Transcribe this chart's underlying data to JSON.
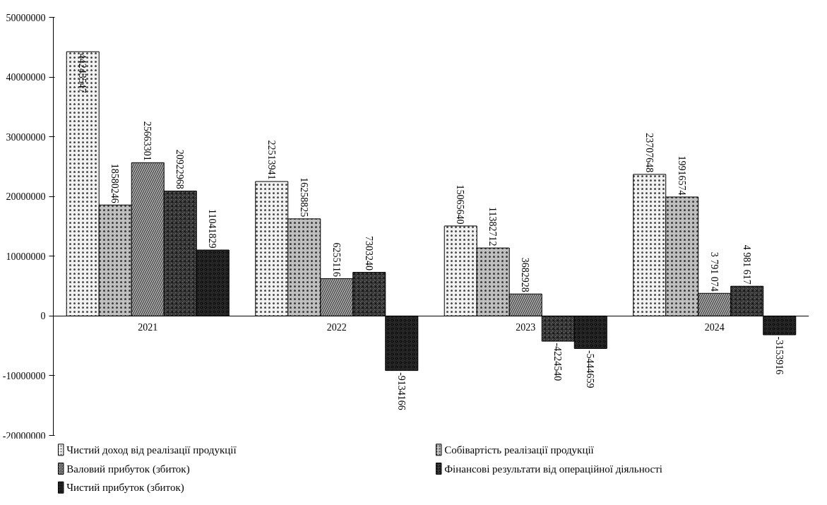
{
  "chart_data": {
    "type": "bar",
    "categories": [
      "2021",
      "2022",
      "2023",
      "2024"
    ],
    "series": [
      {
        "name": "Чистий доход від реалізації продукції",
        "color": "#f2f2f2",
        "values": [
          44243547,
          22513941,
          15065640,
          23707648
        ],
        "value_labels": [
          "44243547",
          "22513941",
          "15065640",
          "23707648"
        ]
      },
      {
        "name": "Собівартість реалізації продукції",
        "color": "#bfbfbf",
        "values": [
          18580246,
          16258825,
          11382712,
          19916574
        ],
        "value_labels": [
          "18580246",
          "16258825",
          "11382712",
          "19916574"
        ]
      },
      {
        "name": "Валовий прибуток (збиток)",
        "color": "#a6a6a6",
        "values": [
          25663301,
          6255116,
          3682928,
          3791074
        ],
        "value_labels": [
          "25663301",
          "6255116",
          "3682928",
          "3 791 074"
        ]
      },
      {
        "name": "Фінансові результати від операційної діяльності",
        "color": "#595959",
        "values": [
          20922968,
          7303240,
          -4224540,
          4981617
        ],
        "value_labels": [
          "20922968",
          "7303240",
          "-4224540",
          "4 981 617"
        ]
      },
      {
        "name": "Чистий прибуток (збиток)",
        "color": "#262626",
        "values": [
          11041829,
          -9134166,
          -5444659,
          -3153916
        ],
        "value_labels": [
          "11041829",
          "-9134166",
          "-5444659",
          "-3153916"
        ]
      }
    ],
    "ylim": [
      -20000000,
      50000000
    ],
    "yticks": [
      -20000000,
      -10000000,
      0,
      10000000,
      20000000,
      30000000,
      40000000,
      50000000
    ],
    "grid": false,
    "legend": "bottom"
  }
}
